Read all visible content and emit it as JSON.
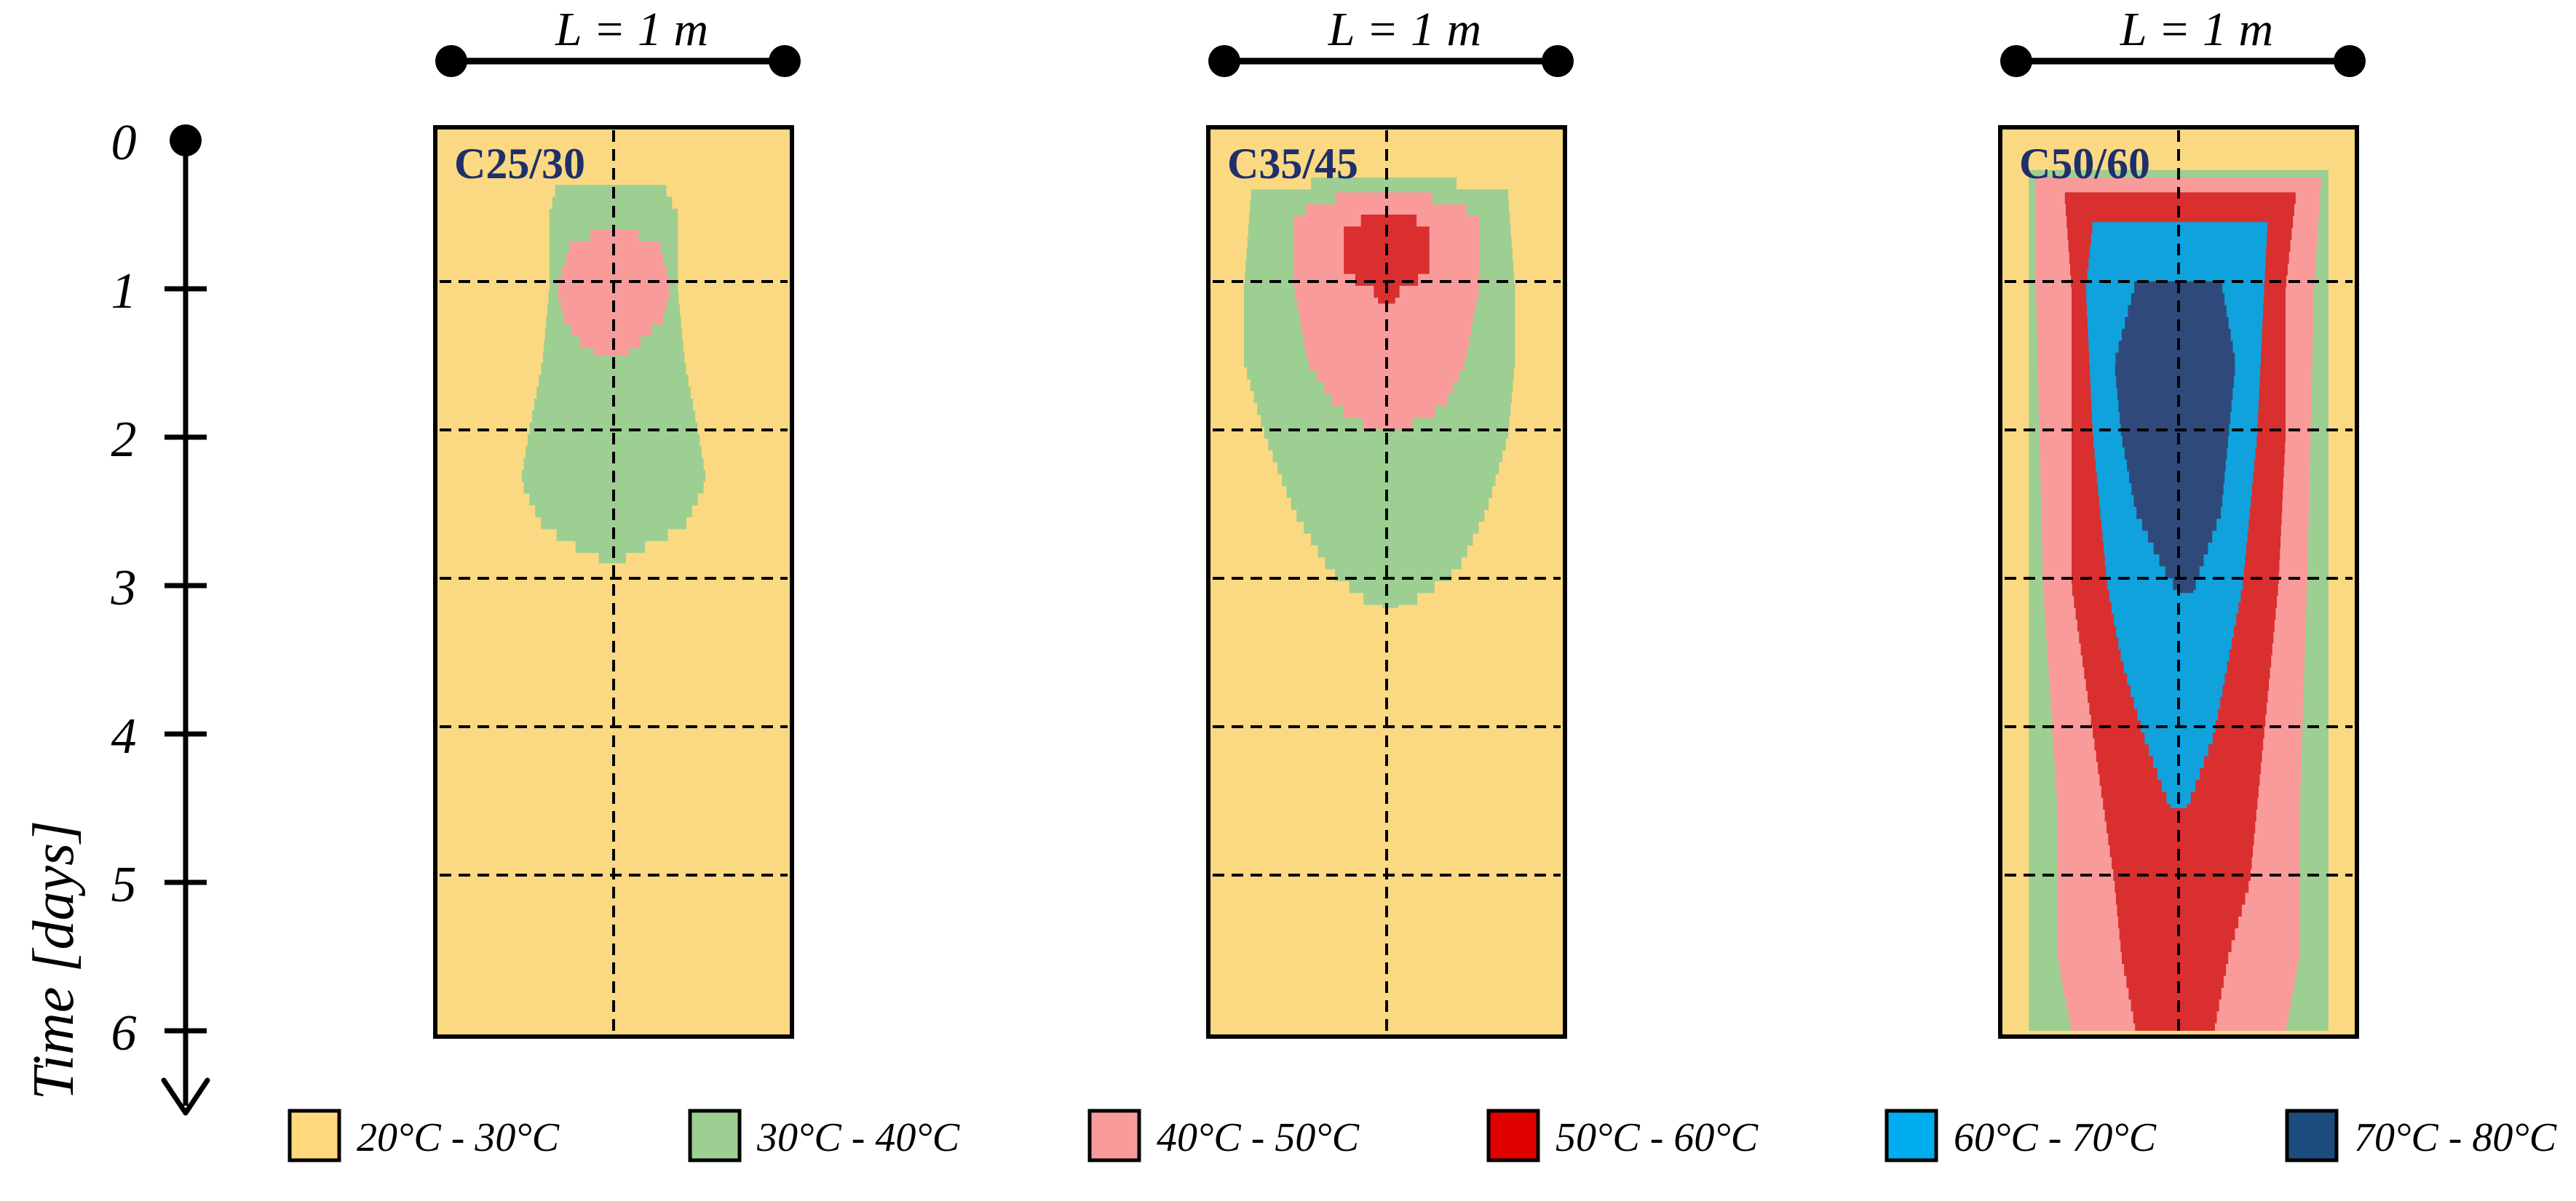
{
  "scale_label": "L = 1 m",
  "time_axis": {
    "label": "Time [days]",
    "ticks": [
      "0",
      "1",
      "2",
      "3",
      "4",
      "5",
      "6"
    ]
  },
  "panels": [
    {
      "label": "C25/30",
      "zones": [
        {
          "range": "30°C - 40°C",
          "color": "#9ccf91",
          "profile": [
            [
              0.3,
              0.34,
              0.64
            ],
            [
              0.5,
              0.32,
              0.68
            ],
            [
              1.0,
              0.32,
              0.68
            ],
            [
              1.5,
              0.3,
              0.7
            ],
            [
              2.0,
              0.26,
              0.74
            ],
            [
              2.3,
              0.24,
              0.76
            ],
            [
              2.6,
              0.3,
              0.7
            ],
            [
              2.75,
              0.4,
              0.58
            ],
            [
              2.85,
              0.49,
              0.51
            ]
          ]
        },
        {
          "range": "40°C - 50°C",
          "color": "#f99b9b",
          "profile": [
            [
              0.6,
              0.47,
              0.53
            ],
            [
              0.7,
              0.38,
              0.63
            ],
            [
              1.0,
              0.34,
              0.66
            ],
            [
              1.2,
              0.36,
              0.64
            ],
            [
              1.35,
              0.4,
              0.58
            ],
            [
              1.45,
              0.46,
              0.53
            ]
          ]
        }
      ]
    },
    {
      "label": "C35/45",
      "zones": [
        {
          "range": "30°C - 40°C",
          "color": "#9ccf91",
          "profile": [
            [
              0.25,
              0.4,
              0.6
            ],
            [
              0.35,
              0.12,
              0.84
            ],
            [
              1.0,
              0.1,
              0.86
            ],
            [
              1.5,
              0.1,
              0.86
            ],
            [
              2.0,
              0.16,
              0.84
            ],
            [
              2.5,
              0.24,
              0.78
            ],
            [
              2.9,
              0.34,
              0.7
            ],
            [
              3.1,
              0.44,
              0.58
            ],
            [
              3.15,
              0.5,
              0.52
            ]
          ]
        },
        {
          "range": "40°C - 50°C",
          "color": "#f99b9b",
          "profile": [
            [
              0.35,
              0.4,
              0.58
            ],
            [
              0.5,
              0.24,
              0.76
            ],
            [
              1.0,
              0.24,
              0.76
            ],
            [
              1.5,
              0.28,
              0.72
            ],
            [
              1.8,
              0.36,
              0.66
            ],
            [
              1.95,
              0.46,
              0.54
            ]
          ]
        },
        {
          "range": "50°C - 60°C",
          "color": "#d92f2f",
          "profile": [
            [
              0.5,
              0.46,
              0.56
            ],
            [
              0.6,
              0.38,
              0.62
            ],
            [
              0.9,
              0.38,
              0.62
            ],
            [
              1.0,
              0.46,
              0.54
            ],
            [
              1.1,
              0.48,
              0.52
            ]
          ]
        }
      ]
    },
    {
      "label": "C50/60",
      "zones": [
        {
          "range": "30°C - 40°C",
          "color": "#9ccf91",
          "profile": [
            [
              0.2,
              0.08,
              0.92
            ],
            [
              6.0,
              0.08,
              0.92
            ]
          ]
        },
        {
          "range": "40°C - 50°C",
          "color": "#f99b9b",
          "profile": [
            [
              0.25,
              0.1,
              0.9
            ],
            [
              1.0,
              0.1,
              0.88
            ],
            [
              3.0,
              0.12,
              0.86
            ],
            [
              4.5,
              0.16,
              0.84
            ],
            [
              5.5,
              0.16,
              0.84
            ],
            [
              6.0,
              0.2,
              0.8
            ]
          ]
        },
        {
          "range": "50°C - 60°C",
          "color": "#d92f2f",
          "profile": [
            [
              0.35,
              0.18,
              0.83
            ],
            [
              1.0,
              0.2,
              0.8
            ],
            [
              2.0,
              0.2,
              0.8
            ],
            [
              3.0,
              0.2,
              0.78
            ],
            [
              4.0,
              0.26,
              0.74
            ],
            [
              5.0,
              0.32,
              0.7
            ],
            [
              5.5,
              0.34,
              0.64
            ],
            [
              6.0,
              0.38,
              0.6
            ]
          ]
        },
        {
          "range": "60°C - 70°C",
          "color": "#10a2dc",
          "profile": [
            [
              0.55,
              0.26,
              0.75
            ],
            [
              1.0,
              0.24,
              0.74
            ],
            [
              2.0,
              0.26,
              0.72
            ],
            [
              3.0,
              0.3,
              0.68
            ],
            [
              3.5,
              0.34,
              0.64
            ],
            [
              4.0,
              0.4,
              0.6
            ],
            [
              4.4,
              0.46,
              0.54
            ],
            [
              4.5,
              0.48,
              0.52
            ]
          ]
        },
        {
          "range": "70°C - 80°C",
          "color": "#2f4a7a",
          "profile": [
            [
              0.95,
              0.38,
              0.62
            ],
            [
              1.5,
              0.32,
              0.66
            ],
            [
              2.0,
              0.34,
              0.64
            ],
            [
              2.5,
              0.38,
              0.62
            ],
            [
              2.9,
              0.46,
              0.56
            ],
            [
              3.05,
              0.5,
              0.54
            ]
          ]
        }
      ]
    }
  ],
  "legend": [
    {
      "label": "20°C - 30°C",
      "color": "#ffd97c"
    },
    {
      "label": "30°C - 40°C",
      "color": "#9ccf91"
    },
    {
      "label": "40°C - 50°C",
      "color": "#f99b9b"
    },
    {
      "label": "50°C - 60°C",
      "color": "#e00000"
    },
    {
      "label": "60°C - 70°C",
      "color": "#00adef"
    },
    {
      "label": "70°C - 80°C",
      "color": "#1c4c7d"
    }
  ],
  "colors": {
    "background_zone": "#fbd982",
    "panel_label": "#1e2f6b"
  }
}
